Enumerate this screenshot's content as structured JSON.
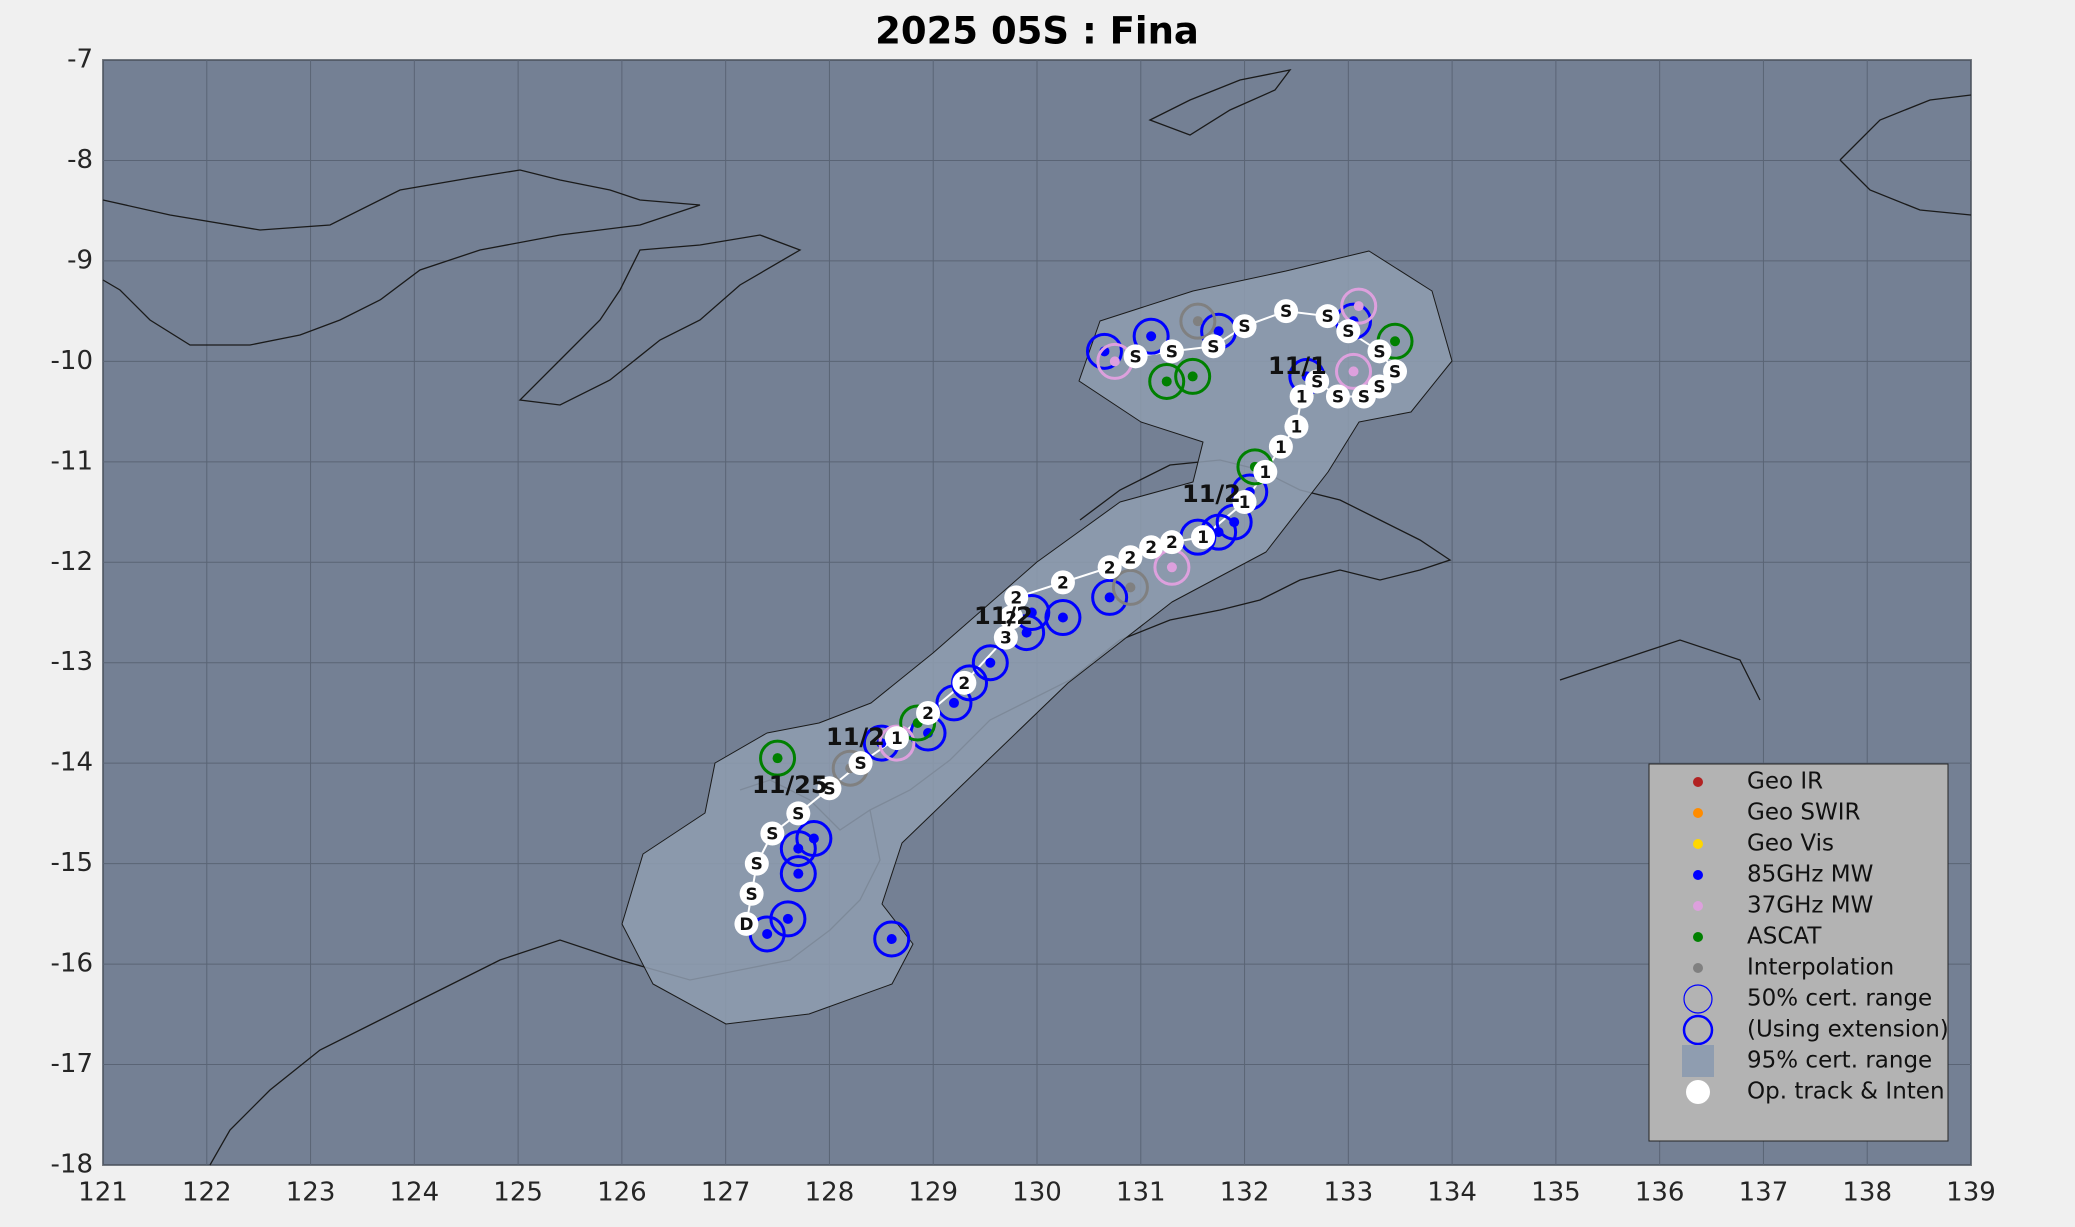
{
  "chart_data": {
    "type": "track-map",
    "title": "2025  05S :  Fina",
    "xlim": [
      121,
      139
    ],
    "xticks": [
      121,
      122,
      123,
      124,
      125,
      126,
      127,
      128,
      129,
      130,
      131,
      132,
      133,
      134,
      135,
      136,
      137,
      138,
      139
    ],
    "ylim": [
      -18,
      -7
    ],
    "yticks": [
      -7,
      -8,
      -9,
      -10,
      -11,
      -12,
      -13,
      -14,
      -15,
      -16,
      -17,
      -18
    ],
    "grid": true,
    "legend_location": "lower right",
    "series": [
      {
        "name": "Geo IR",
        "color": "#b22222",
        "marker": "dot",
        "x": [],
        "values": []
      },
      {
        "name": "Geo SWIR",
        "color": "#ff8c00",
        "marker": "dot",
        "x": [],
        "values": []
      },
      {
        "name": "Geo Vis",
        "color": "#ffd700",
        "marker": "dot",
        "x": [],
        "values": []
      },
      {
        "name": "85GHz MW",
        "color": "#0000ff",
        "marker": "dot",
        "x": [
          127.4,
          127.6,
          127.7,
          127.85,
          127.7,
          128.6,
          128.5,
          128.95,
          129.2,
          129.35,
          129.55,
          129.9,
          129.95,
          130.25,
          130.7,
          131.55,
          131.75,
          131.9,
          132.05,
          130.65,
          131.1,
          131.75,
          132.6,
          133.05
        ],
        "values": [
          -15.7,
          -15.55,
          -14.85,
          -14.75,
          -15.1,
          -15.75,
          -13.8,
          -13.7,
          -13.4,
          -13.2,
          -13.0,
          -12.7,
          -12.5,
          -12.55,
          -12.35,
          -11.75,
          -11.7,
          -11.6,
          -11.3,
          -9.9,
          -9.75,
          -9.7,
          -10.15,
          -9.6
        ]
      },
      {
        "name": "37GHz MW",
        "color": "#dda0dd",
        "marker": "dot",
        "x": [
          128.65,
          131.3,
          130.75,
          133.05,
          133.1
        ],
        "values": [
          -13.8,
          -12.05,
          -10.0,
          -10.1,
          -9.45
        ]
      },
      {
        "name": "ASCAT",
        "color": "#008000",
        "marker": "dot",
        "x": [
          127.5,
          128.85,
          131.25,
          131.5,
          132.1,
          133.45
        ],
        "values": [
          -13.95,
          -13.6,
          -10.2,
          -10.15,
          -11.05,
          -9.8
        ]
      },
      {
        "name": "Interpolation",
        "color": "#808080",
        "marker": "dot",
        "x": [
          128.2,
          130.9,
          131.55
        ],
        "values": [
          -14.05,
          -12.25,
          -9.6
        ]
      }
    ],
    "legend_extra": [
      {
        "name": "50% cert. range",
        "color": "#0000ff",
        "marker": "circle"
      },
      {
        "name": "(Using extension)",
        "color": "#0000ff",
        "marker": "circle-thick"
      },
      {
        "name": "95% cert. range",
        "color": "#8f9db0",
        "marker": "square"
      }
    ],
    "track": {
      "name": "Op. track & Inten",
      "color": "#ffffff",
      "x": [
        127.2,
        127.25,
        127.3,
        127.45,
        127.7,
        128.0,
        128.3,
        128.65,
        128.95,
        129.3,
        129.7,
        129.75,
        129.8,
        130.25,
        130.7,
        130.9,
        131.1,
        131.3,
        131.6,
        132.0,
        132.2,
        132.35,
        132.5,
        132.55,
        132.7,
        132.9,
        133.15,
        133.3,
        133.45,
        133.3,
        133.0,
        132.8,
        132.4,
        132.0,
        131.7,
        131.3,
        130.95
      ],
      "values": [
        -15.6,
        -15.3,
        -15.0,
        -14.7,
        -14.5,
        -14.25,
        -14.0,
        -13.75,
        -13.5,
        -13.2,
        -12.75,
        -12.55,
        -12.35,
        -12.2,
        -12.05,
        -11.95,
        -11.85,
        -11.8,
        -11.75,
        -11.4,
        -11.1,
        -10.85,
        -10.65,
        -10.35,
        -10.2,
        -10.35,
        -10.35,
        -10.25,
        -10.1,
        -9.9,
        -9.7,
        -9.55,
        -9.5,
        -9.65,
        -9.85,
        -9.9,
        -9.95
      ],
      "labels": [
        "D",
        "S",
        "S",
        "S",
        "S",
        "S",
        "S",
        "1",
        "2",
        "2",
        "3",
        "2",
        "2",
        "2",
        "2",
        "2",
        "2",
        "2",
        "1",
        "1",
        "1",
        "1",
        "1",
        "1",
        "S",
        "S",
        "S",
        "S",
        "S",
        "S",
        "S",
        "S",
        "S",
        "S",
        "S",
        "S",
        "S"
      ]
    },
    "annotations": [
      "11/25",
      "11/2",
      "11/2",
      "11/2",
      "11/1"
    ]
  }
}
